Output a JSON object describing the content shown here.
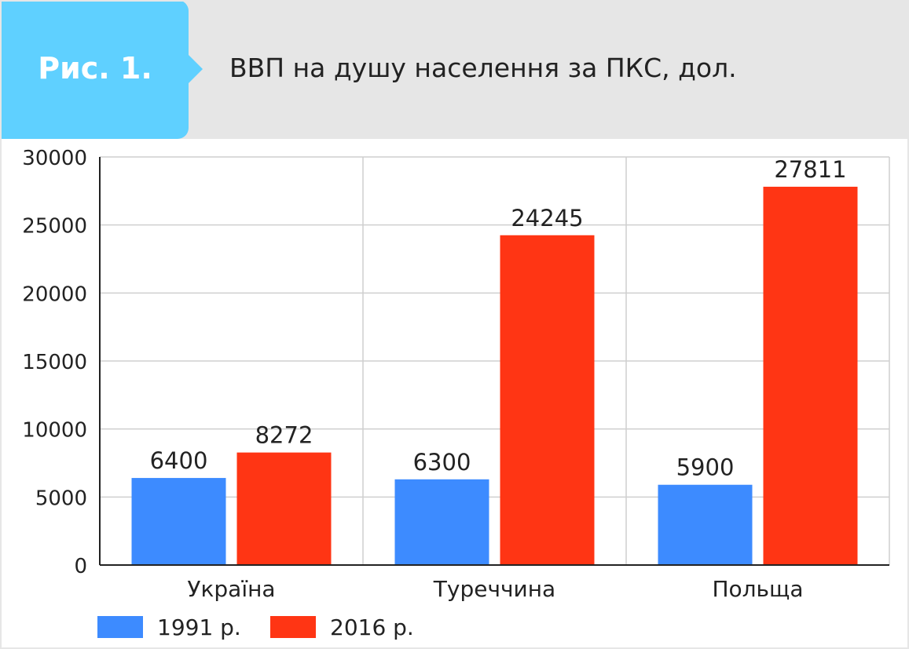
{
  "header": {
    "figure_label": "Рис. 1.",
    "badge_color": "#5fd0ff"
  },
  "chart_data": {
    "type": "bar",
    "title": "ВВП на душу населення за ПКС, дол.",
    "categories": [
      "Україна",
      "Туреччина",
      "Польща"
    ],
    "series": [
      {
        "name": "1991 р.",
        "color": "#3d8bff",
        "values": [
          6400,
          6300,
          5900
        ]
      },
      {
        "name": "2016 р.",
        "color": "#ff3514",
        "values": [
          8272,
          24245,
          27811
        ]
      }
    ],
    "yticks": [
      "0",
      "5000",
      "10000",
      "15000",
      "20000",
      "25000",
      "30000"
    ],
    "ylim": [
      0,
      30000
    ],
    "grid": true,
    "legend_position": "bottom-left",
    "data_labels": true
  }
}
